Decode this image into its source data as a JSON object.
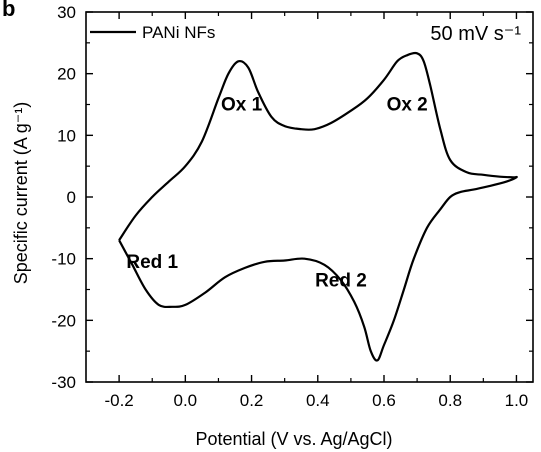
{
  "panel_label": "b",
  "chart_data": {
    "type": "line",
    "title": "",
    "xlabel": "Potential (V vs. Ag/AgCl)",
    "ylabel": "Specific current (A g⁻¹)",
    "xlim": [
      -0.3,
      1.05
    ],
    "ylim": [
      -30,
      30
    ],
    "x_ticks": [
      -0.2,
      0.0,
      0.2,
      0.4,
      0.6,
      0.8,
      1.0
    ],
    "x_tick_labels": [
      "-0.2",
      "0.0",
      "0.2",
      "0.4",
      "0.6",
      "0.8",
      "1.0"
    ],
    "y_ticks": [
      -30,
      -20,
      -10,
      0,
      10,
      20,
      30
    ],
    "y_tick_labels": [
      "-30",
      "-20",
      "-10",
      "0",
      "10",
      "20",
      "30"
    ],
    "legend": {
      "position": "top-left",
      "entries": [
        "PANi NFs"
      ]
    },
    "scan_rate_label": "50 mV s⁻¹",
    "series": [
      {
        "name": "PANi NFs",
        "color": "#000000",
        "x": [
          -0.2,
          -0.15,
          -0.1,
          -0.05,
          0.0,
          0.05,
          0.1,
          0.13,
          0.16,
          0.19,
          0.22,
          0.26,
          0.3,
          0.35,
          0.39,
          0.44,
          0.5,
          0.55,
          0.6,
          0.64,
          0.67,
          0.7,
          0.72,
          0.74,
          0.77,
          0.8,
          0.85,
          0.9,
          0.95,
          0.99,
          1.0,
          0.97,
          0.92,
          0.87,
          0.83,
          0.8,
          0.77,
          0.73,
          0.69,
          0.66,
          0.63,
          0.6,
          0.58,
          0.56,
          0.54,
          0.51,
          0.47,
          0.42,
          0.36,
          0.3,
          0.24,
          0.18,
          0.12,
          0.06,
          0.0,
          -0.04,
          -0.08,
          -0.12,
          -0.16,
          -0.2
        ],
        "y": [
          -7,
          -3,
          0,
          2.5,
          5,
          9,
          16,
          20,
          22,
          21,
          17,
          13,
          11.5,
          11,
          11,
          12,
          14,
          16,
          19,
          22,
          23,
          23.3,
          22,
          18,
          11,
          6,
          4,
          3.6,
          3.3,
          3.2,
          3.2,
          2.5,
          1.8,
          1.2,
          0.8,
          0,
          -2,
          -5,
          -10,
          -15,
          -20,
          -24,
          -26.5,
          -25,
          -21,
          -17,
          -13.5,
          -11,
          -10,
          -10.3,
          -10.5,
          -11.5,
          -13,
          -15.5,
          -17.5,
          -17.8,
          -17.5,
          -15,
          -11,
          -7
        ]
      }
    ],
    "annotations": [
      {
        "text": "Ox 1",
        "x": 0.17,
        "y": 14
      },
      {
        "text": "Ox 2",
        "x": 0.67,
        "y": 14
      },
      {
        "text": "Red 1",
        "x": -0.1,
        "y": -11.5
      },
      {
        "text": "Red 2",
        "x": 0.47,
        "y": -14.5
      }
    ]
  }
}
